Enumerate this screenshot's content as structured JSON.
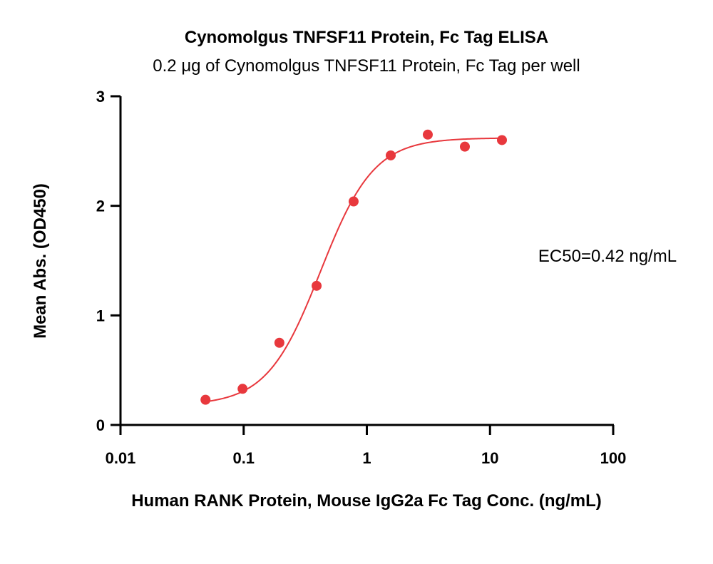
{
  "chart_data": {
    "type": "scatter",
    "title": "Cynomolgus TNFSF11 Protein, Fc Tag ELISA",
    "subtitle": "0.2 μg of Cynomolgus TNFSF11 Protein, Fc Tag per well",
    "xlabel": "Human RANK Protein, Mouse IgG2a Fc Tag Conc. (ng/mL)",
    "ylabel": "Mean Abs. (OD450)",
    "x_scale": "log",
    "xlim": [
      0.01,
      100
    ],
    "ylim": [
      0,
      3
    ],
    "x_ticks": [
      0.01,
      0.1,
      1,
      10,
      100
    ],
    "x_tick_labels": [
      "0.01",
      "0.1",
      "1",
      "10",
      "100"
    ],
    "y_ticks": [
      0,
      1,
      2,
      3
    ],
    "y_tick_labels": [
      "0",
      "1",
      "2",
      "3"
    ],
    "grid": false,
    "legend": "none",
    "series": [
      {
        "color": "#e8383d",
        "x": [
          0.049,
          0.098,
          0.195,
          0.391,
          0.781,
          1.563,
          3.125,
          6.25,
          12.5
        ],
        "y": [
          0.23,
          0.33,
          0.75,
          1.27,
          2.04,
          2.46,
          2.65,
          2.54,
          2.6
        ]
      }
    ],
    "fit": {
      "model": "4PL",
      "bottom": 0.18,
      "top": 2.62,
      "ec50": 0.42,
      "hill": 2.0,
      "x_range": [
        0.049,
        12.5
      ],
      "color": "#e8383d"
    },
    "annotation": "EC50=0.42 ng/mL"
  }
}
